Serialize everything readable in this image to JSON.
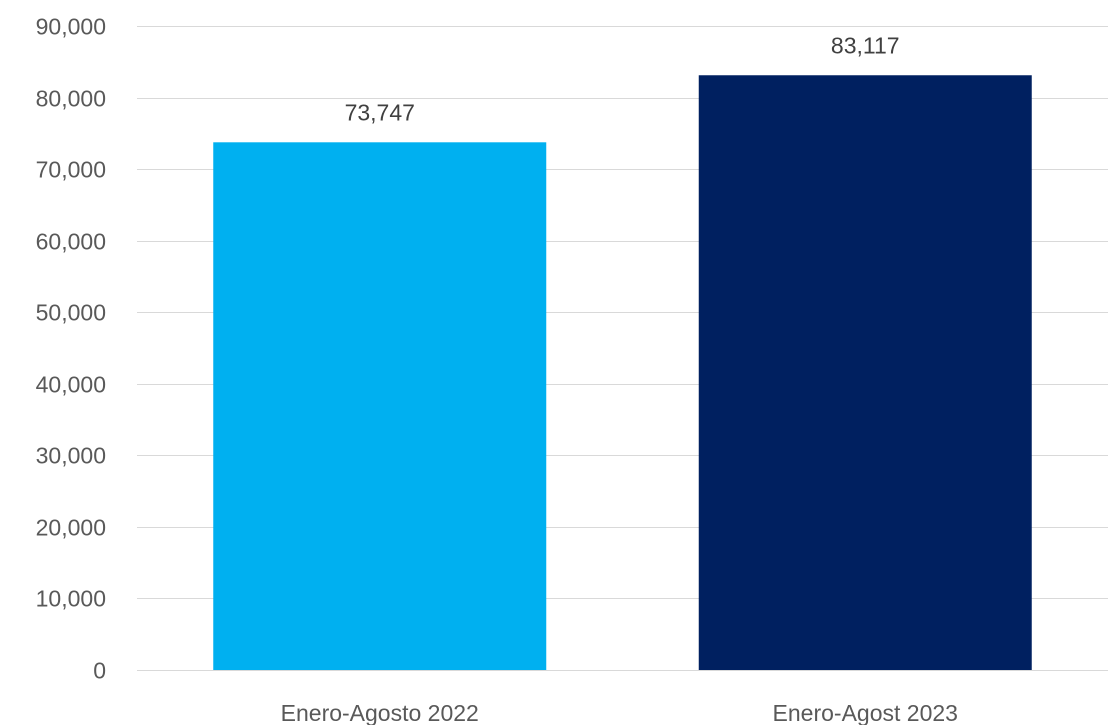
{
  "chart_data": {
    "type": "bar",
    "title": "",
    "xlabel": "",
    "ylabel": "",
    "categories": [
      "Enero-Agosto 2022",
      "Enero-Agost 2023"
    ],
    "values": [
      73747,
      83117
    ],
    "data_labels": [
      "73,747",
      "83,117"
    ],
    "colors": [
      "#00b0f0",
      "#002060"
    ],
    "ylim": [
      0,
      90000
    ],
    "y_ticks": [
      0,
      10000,
      20000,
      30000,
      40000,
      50000,
      60000,
      70000,
      80000,
      90000
    ],
    "y_tick_labels": [
      "0",
      "10,000",
      "20,000",
      "30,000",
      "40,000",
      "50,000",
      "60,000",
      "70,000",
      "80,000",
      "90,000"
    ],
    "grid": true,
    "legend": "none"
  }
}
